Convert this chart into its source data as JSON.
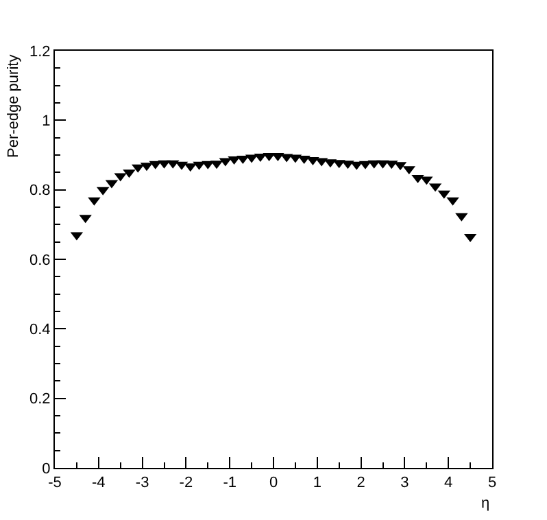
{
  "chart_data": {
    "type": "scatter",
    "xlabel": "η",
    "ylabel": "Per-edge purity",
    "marker": "triangle",
    "grid": false,
    "x": [
      -4.5,
      -4.3,
      -4.1,
      -3.9,
      -3.7,
      -3.5,
      -3.3,
      -3.1,
      -2.9,
      -2.7,
      -2.5,
      -2.3,
      -2.1,
      -1.9,
      -1.7,
      -1.5,
      -1.3,
      -1.1,
      -0.9,
      -0.7,
      -0.5,
      -0.3,
      -0.1,
      0.1,
      0.3,
      0.5,
      0.7,
      0.9,
      1.1,
      1.3,
      1.5,
      1.7,
      1.9,
      2.1,
      2.3,
      2.5,
      2.7,
      2.9,
      3.1,
      3.3,
      3.5,
      3.7,
      3.9,
      4.1,
      4.3,
      4.5
    ],
    "series": [
      {
        "color": "#000000",
        "values": [
          0.67,
          0.72,
          0.77,
          0.8,
          0.82,
          0.84,
          0.85,
          0.865,
          0.87,
          0.875,
          0.877,
          0.877,
          0.873,
          0.868,
          0.873,
          0.875,
          0.876,
          0.883,
          0.888,
          0.89,
          0.893,
          0.896,
          0.898,
          0.898,
          0.895,
          0.893,
          0.89,
          0.886,
          0.883,
          0.88,
          0.878,
          0.876,
          0.873,
          0.875,
          0.877,
          0.877,
          0.876,
          0.872,
          0.86,
          0.835,
          0.83,
          0.81,
          0.79,
          0.77,
          0.725,
          0.665
        ]
      }
    ],
    "xlim": [
      -5,
      5
    ],
    "xticks": [
      -5,
      -4,
      -3,
      -2,
      -1,
      0,
      1,
      2,
      3,
      4,
      5
    ],
    "ylim": [
      0,
      1.2
    ],
    "yticks": [
      0,
      0.2,
      0.4,
      0.6,
      0.8,
      1,
      1.2
    ]
  }
}
